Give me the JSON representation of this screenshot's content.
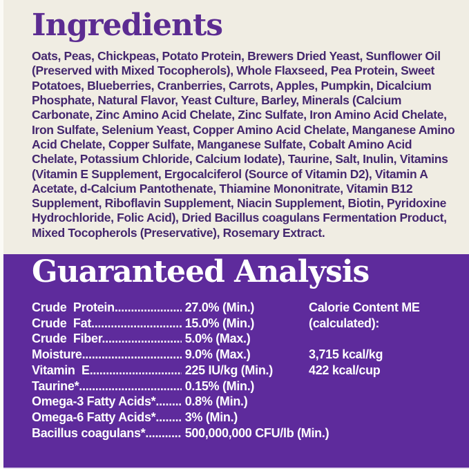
{
  "colors": {
    "background_cream": "#f0ede3",
    "panel_purple": "#5e2b9c",
    "heading_purple": "#5c2c92",
    "body_text_purple": "#44276e",
    "text_white": "#ffffff"
  },
  "ingredients": {
    "title": "Ingredients",
    "lines": [
      "Oats, Peas, Chickpeas, Potato Protein, Brewers Dried Yeast, Sunflower Oil",
      "(Preserved with Mixed Tocopherols), Whole Flaxseed, Pea Protein, Sweet",
      "Potatoes, Blueberries, Cranberries, Carrots, Apples, Pumpkin, Dicalcium",
      "Phosphate, Natural Flavor, Yeast Culture, Barley, Minerals (Calcium",
      "Carbonate, Zinc Amino Acid Chelate, Zinc Sulfate, Iron Amino Acid Chelate,",
      "Iron Sulfate, Selenium Yeast, Copper Amino Acid Chelate, Manganese Amino",
      "Acid Chelate, Copper Sulfate, Manganese Sulfate, Cobalt Amino Acid",
      "Chelate, Potassium Chloride, Calcium Iodate), Taurine, Salt, Inulin, Vitamins",
      "(Vitamin E Supplement, Ergocalciferol (Source of Vitamin D2), Vitamin A",
      "Acetate, d-Calcium Pantothenate, Thiamine Mononitrate, Vitamin B12",
      "Supplement, Riboflavin Supplement, Niacin Supplement, Biotin, Pyridoxine",
      "Hydrochloride, Folic Acid), Dried Bacillus coagulans Fermentation Product,",
      "Mixed Tocopherols (Preservative), Rosemary Extract."
    ]
  },
  "guaranteed_analysis": {
    "title": "Guaranteed Analysis",
    "leader_dots": "............................................................",
    "rows": [
      {
        "name": "Crude  Protein",
        "value": "27.0% (Min.)"
      },
      {
        "name": "Crude  Fat",
        "value": "15.0% (Min.)"
      },
      {
        "name": "Crude  Fiber",
        "value": "5.0% (Max.)"
      },
      {
        "name": "Moisture",
        "value": "9.0% (Max.)"
      },
      {
        "name": "Vitamin  E",
        "value": "225 IU/kg (Min.)"
      },
      {
        "name": "Taurine*",
        "value": "0.15% (Min.)"
      },
      {
        "name": "Omega-3 Fatty Acids*",
        "value": "0.8% (Min.)"
      },
      {
        "name": "Omega-6 Fatty Acids*",
        "value": "3% (Min.)"
      },
      {
        "name": "Bacillus coagulans*",
        "value": "500,000,000 CFU/lb (Min.)"
      }
    ],
    "calories": {
      "heading_line1": "Calorie Content ME",
      "heading_line2": "(calculated):",
      "values": [
        "3,715 kcal/kg",
        "422 kcal/cup"
      ]
    }
  }
}
